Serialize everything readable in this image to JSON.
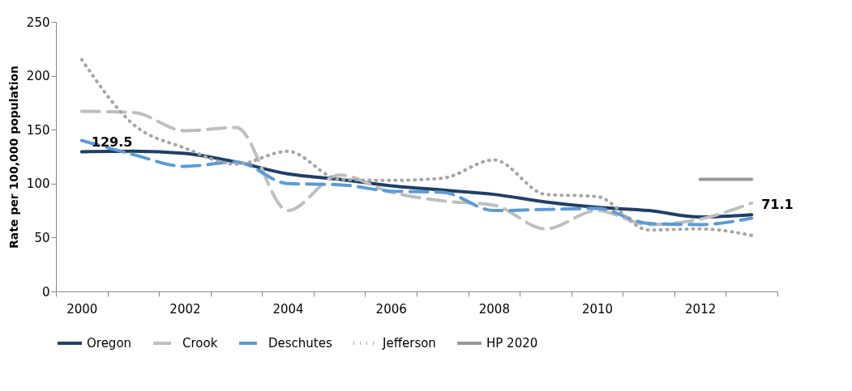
{
  "chart_data": {
    "type": "line",
    "ylabel": "Rate per 100,000 population",
    "categories": [
      "2000",
      null,
      "2002",
      null,
      "2004",
      null,
      "2006",
      null,
      "2008",
      null,
      "2010",
      null,
      "2012",
      null
    ],
    "ylim": [
      0,
      250
    ],
    "yticks": [
      0,
      50,
      100,
      150,
      200,
      250
    ],
    "grid": false,
    "legend": "bottom",
    "series": [
      {
        "name": "Oregon",
        "color": "#1f3f66",
        "line_style": "solid",
        "values": [
          129.5,
          130,
          128,
          120,
          109,
          104,
          98,
          94,
          90,
          83,
          78,
          75,
          69,
          71.1
        ],
        "value_labels": [
          "129.5",
          null,
          null,
          null,
          null,
          null,
          null,
          null,
          null,
          null,
          null,
          null,
          null,
          "71.1"
        ]
      },
      {
        "name": "Crook",
        "color": "#bfbfbf",
        "line_style": "dashed",
        "values": [
          167,
          166,
          149,
          152,
          75,
          108,
          92,
          84,
          80,
          58,
          75,
          62,
          67,
          82
        ]
      },
      {
        "name": "Deschutes",
        "color": "#5b9bd5",
        "line_style": "dashed",
        "values": [
          140,
          127,
          116,
          120,
          100,
          99,
          93,
          92,
          75,
          76,
          77,
          63,
          62,
          68
        ]
      },
      {
        "name": "Jefferson",
        "color": "#a6a6a6",
        "line_style": "dotted",
        "values": [
          215,
          155,
          133,
          118,
          130,
          104,
          103,
          105,
          122,
          90,
          88,
          57,
          58,
          52
        ]
      },
      {
        "name": "HP 2020",
        "color": "#999999",
        "line_style": "solid",
        "values": [
          null,
          null,
          null,
          null,
          null,
          null,
          null,
          null,
          null,
          null,
          null,
          null,
          104,
          104
        ]
      }
    ]
  }
}
